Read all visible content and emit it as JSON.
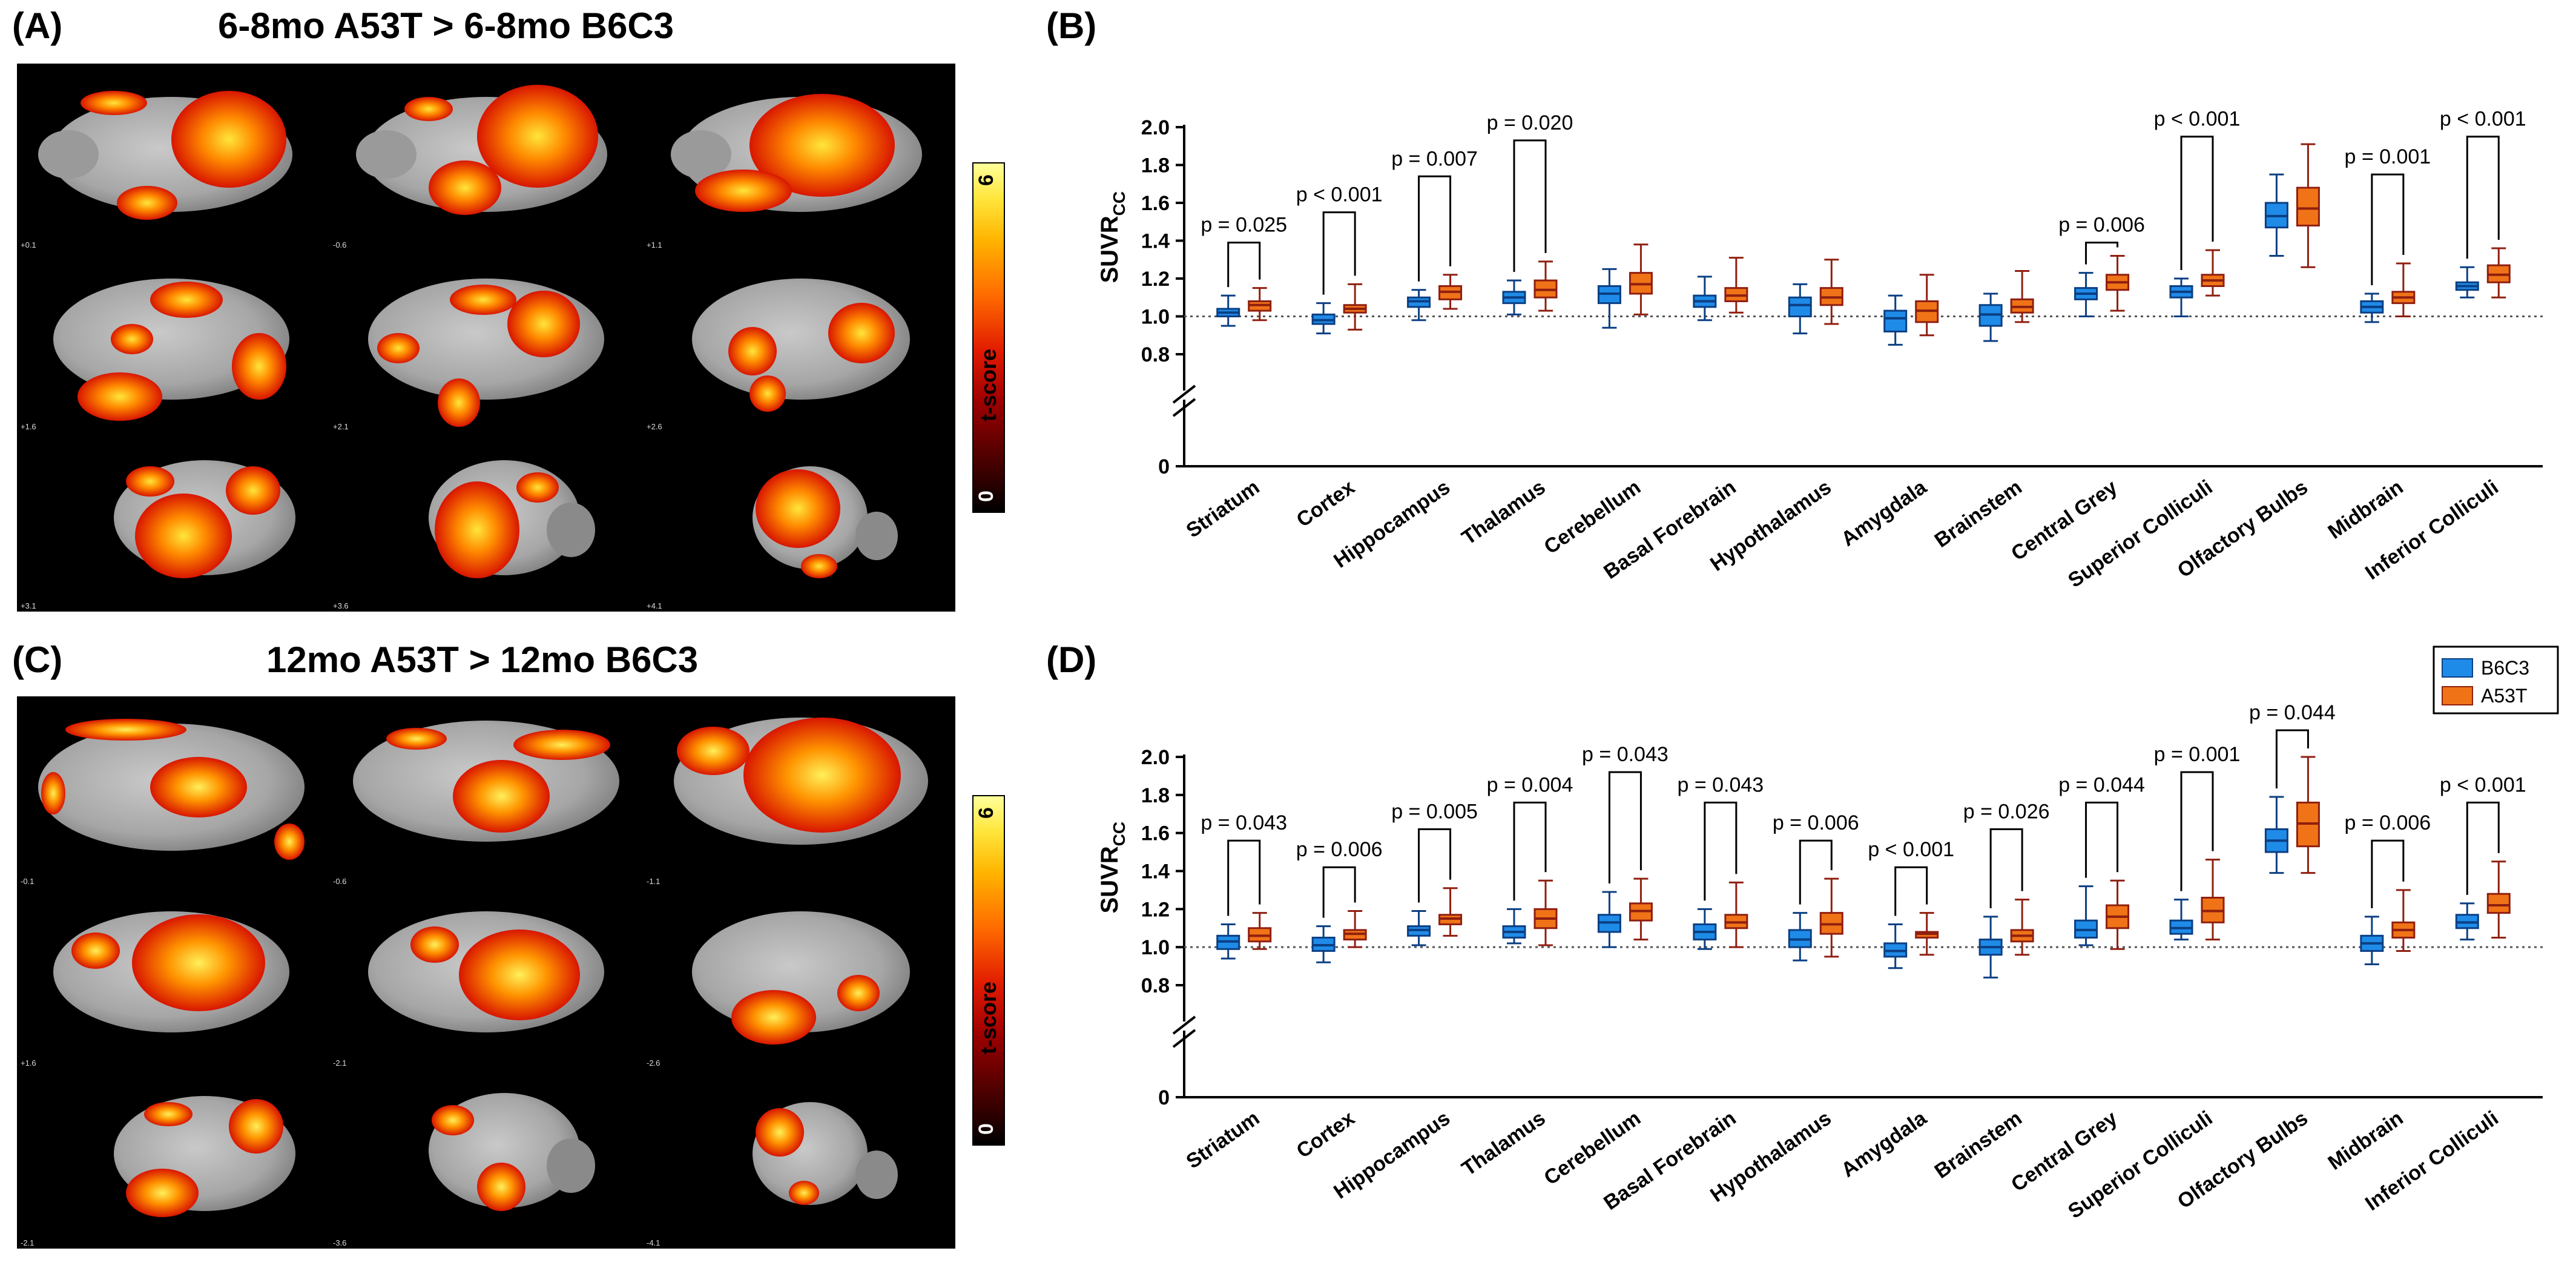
{
  "panels": {
    "a": {
      "letter": "(A)",
      "title": "6-8mo A53T > 6-8mo B6C3"
    },
    "b": {
      "letter": "(B)"
    },
    "c": {
      "letter": "(C)",
      "title": "12mo A53T > 12mo B6C3"
    },
    "d": {
      "letter": "(D)"
    }
  },
  "colorbar": {
    "label": "t-score",
    "min": "0",
    "max": "6"
  },
  "slice_labels": {
    "a": [
      "+0.1",
      "-0.6",
      "+1.1",
      "+1.6",
      "+2.1",
      "+2.6",
      "+3.1",
      "+3.6",
      "+4.1"
    ],
    "c": [
      "-0.1",
      "-0.6",
      "-1.1",
      "+1.6",
      "-2.1",
      "-2.6",
      "-2.1",
      "-3.6",
      "-4.1"
    ]
  },
  "colors": {
    "b6c3": "#1f8be8",
    "a53t": "#f07318",
    "b6c3_dark": "#0b3f83",
    "a53t_dark": "#8f1f10",
    "map_hot": "#ff5a00",
    "map_yellow": "#ffe43a"
  },
  "chart_data": [
    {
      "id": "B",
      "type": "box",
      "ylabel": "SUVR",
      "ylabel_sub": "CC",
      "yticks": [
        "0",
        "0.8",
        "1.0",
        "1.2",
        "1.4",
        "1.6",
        "1.8",
        "2.0"
      ],
      "ylim": [
        0.8,
        2.0
      ],
      "axis_break": true,
      "reference_line": 1.0,
      "categories": [
        "Striatum",
        "Cortex",
        "Hippocampus",
        "Thalamus",
        "Cerebellum",
        "Basal Forebrain",
        "Hypothalamus",
        "Amygdala",
        "Brainstem",
        "Central Grey",
        "Superior Colliculi",
        "Olfactory Bulbs",
        "Midbrain",
        "Inferior Colliculi"
      ],
      "series": [
        {
          "name": "B6C3",
          "boxes": [
            [
              0.95,
              1.0,
              1.02,
              1.04,
              1.11
            ],
            [
              0.91,
              0.96,
              0.98,
              1.01,
              1.07
            ],
            [
              0.98,
              1.05,
              1.08,
              1.1,
              1.14
            ],
            [
              1.01,
              1.07,
              1.1,
              1.13,
              1.19
            ],
            [
              0.94,
              1.07,
              1.12,
              1.16,
              1.25
            ],
            [
              0.98,
              1.05,
              1.08,
              1.11,
              1.21
            ],
            [
              0.91,
              1.0,
              1.06,
              1.1,
              1.17
            ],
            [
              0.85,
              0.92,
              0.99,
              1.03,
              1.11
            ],
            [
              0.87,
              0.95,
              1.01,
              1.06,
              1.12
            ],
            [
              1.0,
              1.09,
              1.12,
              1.15,
              1.23
            ],
            [
              1.0,
              1.1,
              1.13,
              1.16,
              1.2
            ],
            [
              1.32,
              1.47,
              1.53,
              1.6,
              1.75
            ],
            [
              0.97,
              1.02,
              1.05,
              1.08,
              1.12
            ],
            [
              1.1,
              1.14,
              1.16,
              1.18,
              1.26
            ]
          ]
        },
        {
          "name": "A53T",
          "boxes": [
            [
              0.98,
              1.03,
              1.06,
              1.08,
              1.15
            ],
            [
              0.93,
              1.02,
              1.04,
              1.06,
              1.17
            ],
            [
              1.04,
              1.09,
              1.13,
              1.16,
              1.22
            ],
            [
              1.03,
              1.1,
              1.14,
              1.19,
              1.29
            ],
            [
              1.01,
              1.12,
              1.17,
              1.23,
              1.38
            ],
            [
              1.02,
              1.08,
              1.11,
              1.15,
              1.31
            ],
            [
              0.96,
              1.06,
              1.1,
              1.15,
              1.3
            ],
            [
              0.9,
              0.97,
              1.03,
              1.08,
              1.22
            ],
            [
              0.97,
              1.02,
              1.05,
              1.09,
              1.24
            ],
            [
              1.03,
              1.14,
              1.18,
              1.22,
              1.32
            ],
            [
              1.11,
              1.16,
              1.19,
              1.22,
              1.35
            ],
            [
              1.26,
              1.48,
              1.57,
              1.68,
              1.91
            ],
            [
              1.0,
              1.07,
              1.1,
              1.13,
              1.28
            ],
            [
              1.1,
              1.18,
              1.22,
              1.27,
              1.36
            ]
          ]
        }
      ],
      "annotations": [
        "p = 0.025",
        "p < 0.001",
        "p = 0.007",
        "p = 0.020",
        "",
        "",
        "",
        "",
        "",
        "p = 0.006",
        "p < 0.001",
        "",
        "p = 0.001",
        "p < 0.001"
      ],
      "annotation_heights": [
        1.39,
        1.55,
        1.74,
        1.93,
        0,
        0,
        0,
        0,
        0,
        1.39,
        1.95,
        0,
        1.75,
        1.95
      ]
    },
    {
      "id": "D",
      "type": "box",
      "ylabel": "SUVR",
      "ylabel_sub": "CC",
      "yticks": [
        "0",
        "0.8",
        "1.0",
        "1.2",
        "1.4",
        "1.6",
        "1.8",
        "2.0"
      ],
      "ylim": [
        0.8,
        2.0
      ],
      "axis_break": true,
      "reference_line": 1.0,
      "legend": [
        "B6C3",
        "A53T"
      ],
      "categories": [
        "Striatum",
        "Cortex",
        "Hippocampus",
        "Thalamus",
        "Cerebellum",
        "Basal Forebrain",
        "Hypothalamus",
        "Amygdala",
        "Brainstem",
        "Central Grey",
        "Superior Colliculi",
        "Olfactory Bulbs",
        "Midbrain",
        "Inferior Colliculi"
      ],
      "series": [
        {
          "name": "B6C3",
          "boxes": [
            [
              0.94,
              0.99,
              1.03,
              1.06,
              1.12
            ],
            [
              0.92,
              0.98,
              1.01,
              1.05,
              1.11
            ],
            [
              1.01,
              1.06,
              1.09,
              1.11,
              1.19
            ],
            [
              1.02,
              1.05,
              1.08,
              1.11,
              1.2
            ],
            [
              1.0,
              1.08,
              1.13,
              1.17,
              1.29
            ],
            [
              0.99,
              1.04,
              1.08,
              1.12,
              1.2
            ],
            [
              0.93,
              1.0,
              1.04,
              1.09,
              1.18
            ],
            [
              0.89,
              0.95,
              0.98,
              1.02,
              1.12
            ],
            [
              0.84,
              0.96,
              1.0,
              1.04,
              1.16
            ],
            [
              1.01,
              1.05,
              1.09,
              1.14,
              1.32
            ],
            [
              1.04,
              1.07,
              1.1,
              1.14,
              1.25
            ],
            [
              1.39,
              1.5,
              1.56,
              1.62,
              1.79
            ],
            [
              0.91,
              0.98,
              1.02,
              1.06,
              1.16
            ],
            [
              1.04,
              1.1,
              1.13,
              1.17,
              1.23
            ]
          ]
        },
        {
          "name": "A53T",
          "boxes": [
            [
              0.99,
              1.03,
              1.06,
              1.1,
              1.18
            ],
            [
              1.0,
              1.04,
              1.07,
              1.09,
              1.19
            ],
            [
              1.06,
              1.12,
              1.15,
              1.17,
              1.31
            ],
            [
              1.01,
              1.1,
              1.15,
              1.2,
              1.35
            ],
            [
              1.04,
              1.14,
              1.19,
              1.23,
              1.36
            ],
            [
              1.0,
              1.1,
              1.13,
              1.17,
              1.34
            ],
            [
              0.95,
              1.07,
              1.12,
              1.18,
              1.36
            ],
            [
              0.96,
              1.05,
              1.07,
              1.08,
              1.18
            ],
            [
              0.96,
              1.03,
              1.06,
              1.09,
              1.25
            ],
            [
              0.99,
              1.1,
              1.16,
              1.22,
              1.35
            ],
            [
              1.04,
              1.13,
              1.19,
              1.26,
              1.46
            ],
            [
              1.39,
              1.53,
              1.65,
              1.76,
              2.0
            ],
            [
              0.98,
              1.05,
              1.09,
              1.13,
              1.3
            ],
            [
              1.05,
              1.18,
              1.22,
              1.28,
              1.45
            ]
          ]
        }
      ],
      "annotations": [
        "p = 0.043",
        "p = 0.006",
        "p = 0.005",
        "p = 0.004",
        "p = 0.043",
        "p = 0.043",
        "p = 0.006",
        "p < 0.001",
        "p = 0.026",
        "p = 0.044",
        "p = 0.001",
        "p = 0.044",
        "p = 0.006",
        "p < 0.001"
      ],
      "annotation_heights": [
        1.56,
        1.42,
        1.62,
        1.76,
        1.92,
        1.76,
        1.56,
        1.42,
        1.62,
        1.76,
        1.92,
        2.14,
        1.56,
        1.76
      ]
    }
  ]
}
